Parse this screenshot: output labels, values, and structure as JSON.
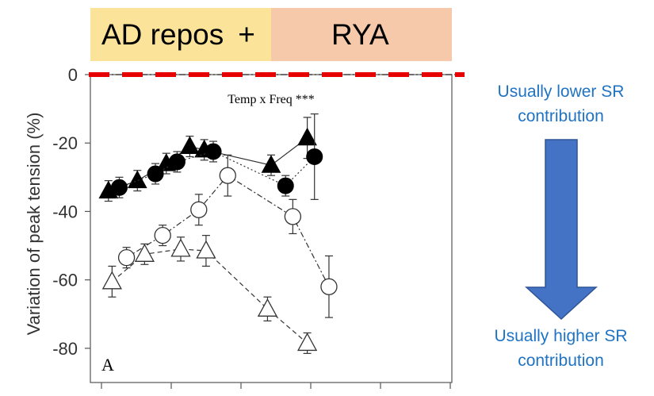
{
  "banner": {
    "left_label": "AD repos",
    "plus": "+",
    "right_label": "RYA",
    "left_color": "#FCE39A",
    "right_color": "#F6C9AA"
  },
  "notes": {
    "top": "Usually lower SR\ncontribution",
    "bottom": "Usually higher SR\ncontribution",
    "color": "#1F73C2",
    "arrow_color": "#4472C4",
    "arrow_border": "#2F5597"
  },
  "chart_data": {
    "type": "line",
    "title": "",
    "annotation": "Temp x Freq ***",
    "panel_label": "A",
    "ylabel": "Variation of peak tension (%)",
    "xlabel": "",
    "ylim": [
      -90,
      0
    ],
    "yticks": [
      0,
      -20,
      -40,
      -60,
      -80
    ],
    "xlim": [
      0,
      10
    ],
    "reference_line": {
      "y": 0,
      "color": "#E60000",
      "style": "dashed"
    },
    "series": [
      {
        "marker": "filled-triangle",
        "line": "solid",
        "x": [
          0.5,
          1.3,
          2.1,
          2.75,
          3.15,
          5.0,
          6.0
        ],
        "y": [
          -34,
          -31,
          -26,
          -21,
          -22,
          -26.5,
          -18.5
        ],
        "err": [
          3,
          3,
          3,
          3,
          3,
          3,
          6
        ]
      },
      {
        "marker": "filled-circle",
        "line": "dotted",
        "x": [
          0.8,
          1.8,
          2.4,
          3.4,
          5.4,
          6.2
        ],
        "y": [
          -33,
          -29,
          -25.5,
          -22.5,
          -32.5,
          -24
        ],
        "err": [
          3,
          3,
          3,
          3,
          3,
          12.5
        ]
      },
      {
        "marker": "open-circle",
        "line": "dash-dot",
        "x": [
          1.0,
          2.0,
          3.0,
          3.8,
          5.6,
          6.6
        ],
        "y": [
          -53.5,
          -47,
          -39.5,
          -29.5,
          -41.5,
          -62
        ],
        "err": [
          3,
          3,
          4.5,
          6,
          5,
          9
        ]
      },
      {
        "marker": "open-triangle",
        "line": "dashed",
        "x": [
          0.6,
          1.5,
          2.5,
          3.2,
          4.9,
          6.0
        ],
        "y": [
          -60.5,
          -52.5,
          -51,
          -51.5,
          -68.5,
          -78.5
        ],
        "err": [
          4.5,
          3,
          3.5,
          4.5,
          3.5,
          3
        ]
      }
    ]
  }
}
